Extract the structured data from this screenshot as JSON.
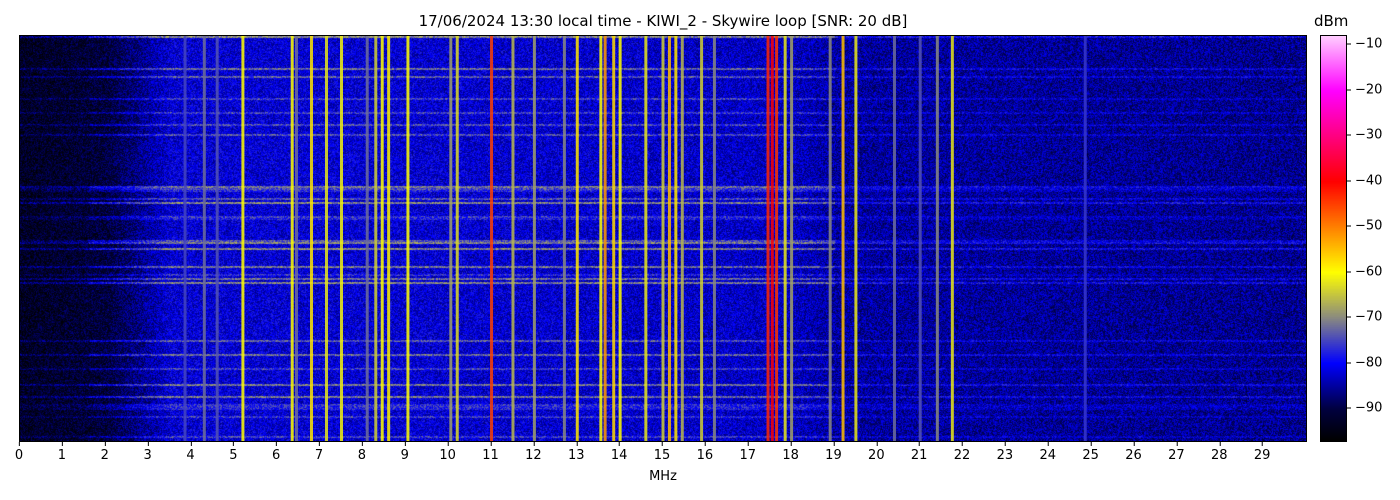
{
  "chart_data": {
    "type": "heatmap",
    "title": "17/06/2024 13:30 local time - KIWI_2 - Skywire loop [SNR: 20 dB]",
    "xlabel": "MHz",
    "xlim": [
      0,
      30
    ],
    "xticks": [
      "0",
      "1",
      "2",
      "3",
      "4",
      "5",
      "6",
      "7",
      "8",
      "9",
      "10",
      "11",
      "12",
      "13",
      "14",
      "15",
      "16",
      "17",
      "18",
      "19",
      "20",
      "21",
      "22",
      "23",
      "24",
      "25",
      "26",
      "27",
      "28",
      "29"
    ],
    "colorbar": {
      "label": "dBm",
      "range": [
        -97,
        -8
      ],
      "ticks": [
        "−10",
        "−20",
        "−30",
        "−40",
        "−50",
        "−60",
        "−70",
        "−80",
        "−90"
      ],
      "tick_values": [
        -10,
        -20,
        -30,
        -40,
        -50,
        -60,
        -70,
        -80,
        -90
      ],
      "colormap": [
        {
          "v": -97,
          "c": "#000000"
        },
        {
          "v": -90,
          "c": "#000040"
        },
        {
          "v": -80,
          "c": "#0000ff"
        },
        {
          "v": -70,
          "c": "#8a8a80"
        },
        {
          "v": -60,
          "c": "#ffff00"
        },
        {
          "v": -50,
          "c": "#ff8000"
        },
        {
          "v": -40,
          "c": "#ff0000"
        },
        {
          "v": -30,
          "c": "#ff0080"
        },
        {
          "v": -20,
          "c": "#ff00ff"
        },
        {
          "v": -8,
          "c": "#ffccff"
        }
      ]
    },
    "noise_floor": [
      {
        "mhz": 0,
        "dbm": -93
      },
      {
        "mhz": 2,
        "dbm": -91
      },
      {
        "mhz": 3.5,
        "dbm": -82
      },
      {
        "mhz": 9,
        "dbm": -82
      },
      {
        "mhz": 18,
        "dbm": -83
      },
      {
        "mhz": 19,
        "dbm": -85
      },
      {
        "mhz": 30,
        "dbm": -86
      }
    ],
    "carriers_mhz_dbm": [
      [
        3.85,
        -75
      ],
      [
        4.3,
        -72
      ],
      [
        4.6,
        -74
      ],
      [
        5.2,
        -60
      ],
      [
        6.35,
        -60
      ],
      [
        6.45,
        -72
      ],
      [
        6.8,
        -58
      ],
      [
        7.15,
        -62
      ],
      [
        7.5,
        -61
      ],
      [
        8.1,
        -72
      ],
      [
        8.3,
        -64
      ],
      [
        8.45,
        -60
      ],
      [
        8.6,
        -59
      ],
      [
        9.05,
        -60
      ],
      [
        10.05,
        -68
      ],
      [
        10.2,
        -63
      ],
      [
        11.0,
        -45
      ],
      [
        11.5,
        -66
      ],
      [
        12.0,
        -68
      ],
      [
        12.7,
        -70
      ],
      [
        13.0,
        -58
      ],
      [
        13.55,
        -60
      ],
      [
        13.65,
        -52
      ],
      [
        13.85,
        -57
      ],
      [
        14.0,
        -60
      ],
      [
        14.6,
        -62
      ],
      [
        15.0,
        -64
      ],
      [
        15.15,
        -55
      ],
      [
        15.3,
        -58
      ],
      [
        15.45,
        -66
      ],
      [
        15.9,
        -64
      ],
      [
        16.2,
        -70
      ],
      [
        17.45,
        -43
      ],
      [
        17.55,
        -40
      ],
      [
        17.65,
        -44
      ],
      [
        17.85,
        -62
      ],
      [
        18.0,
        -68
      ],
      [
        18.9,
        -70
      ],
      [
        19.2,
        -55
      ],
      [
        19.5,
        -62
      ],
      [
        20.4,
        -72
      ],
      [
        21.0,
        -74
      ],
      [
        21.4,
        -70
      ],
      [
        21.75,
        -62
      ],
      [
        24.85,
        -76
      ]
    ]
  }
}
